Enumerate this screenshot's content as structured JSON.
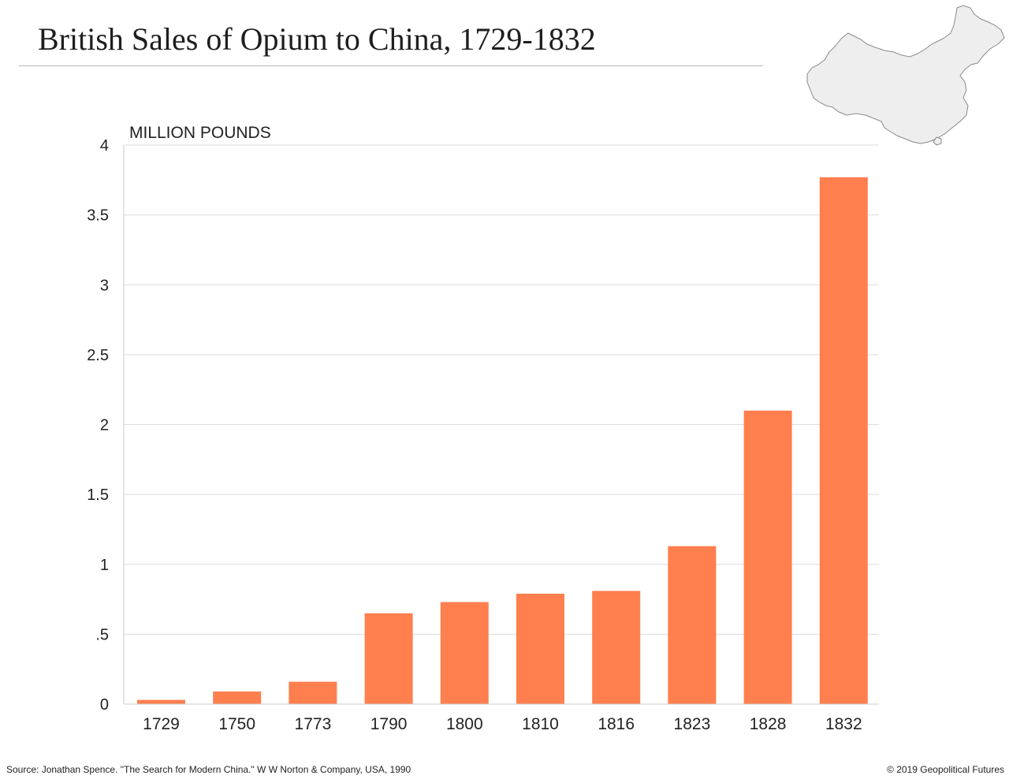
{
  "colors": {
    "bar": "#ff7f4f",
    "grid": "#dcdcdc",
    "axis": "#cccccc",
    "text": "#222222",
    "map_fill": "#eeeeee",
    "map_stroke": "#8a8a8a"
  },
  "map_icon": "china-outline-map",
  "chart_data": {
    "type": "bar",
    "title": "British Sales of Opium to China, 1729-1832",
    "ylabel": "MILLION POUNDS",
    "xlabel": "",
    "categories": [
      "1729",
      "1750",
      "1773",
      "1790",
      "1800",
      "1810",
      "1816",
      "1823",
      "1828",
      "1832"
    ],
    "values": [
      0.03,
      0.09,
      0.16,
      0.65,
      0.73,
      0.79,
      0.81,
      1.13,
      2.1,
      3.77
    ],
    "ylim": [
      0,
      4
    ],
    "yticks": [
      0,
      0.5,
      1,
      1.5,
      2,
      2.5,
      3,
      3.5,
      4
    ],
    "ytick_labels": [
      "0",
      ".5",
      "1",
      "1.5",
      "2",
      "2.5",
      "3",
      "3.5",
      "4"
    ],
    "grid": true,
    "legend": "none"
  },
  "footer": {
    "source": "Source:  Jonathan Spence. \"The Search for Modern China.\" W W Norton & Company, USA, 1990",
    "copyright": "© 2019 Geopolitical Futures"
  }
}
